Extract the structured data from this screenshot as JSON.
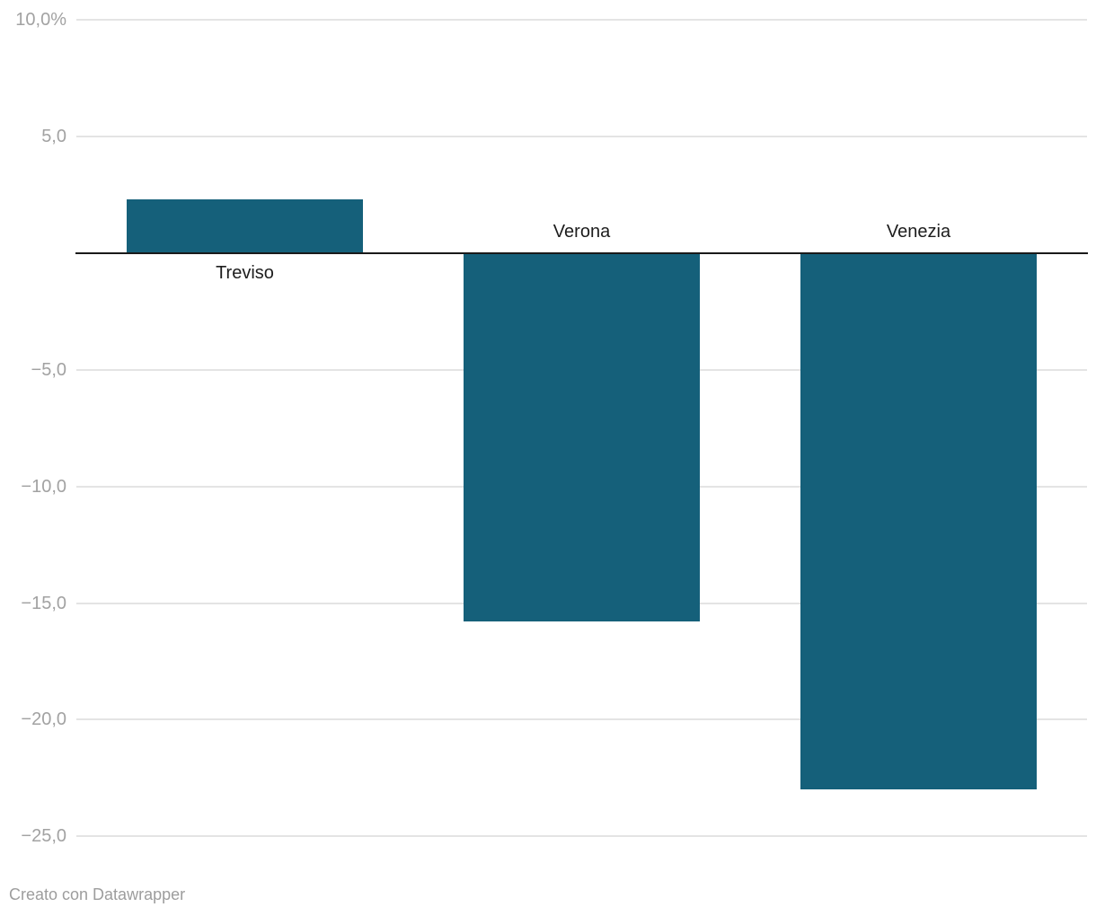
{
  "chart_data": {
    "type": "bar",
    "categories": [
      "Treviso",
      "Verona",
      "Venezia"
    ],
    "values": [
      2.3,
      -15.8,
      -23.0
    ],
    "title": "",
    "xlabel": "",
    "ylabel": "",
    "unit": "%",
    "ylim": [
      -25,
      10
    ],
    "grid": true,
    "legend": "none",
    "y_ticks": [
      {
        "value": 10,
        "label": "10,0%"
      },
      {
        "value": 5,
        "label": "5,0"
      },
      {
        "value": -5,
        "label": "−5,0"
      },
      {
        "value": -10,
        "label": "−10,0"
      },
      {
        "value": -15,
        "label": "−15,0"
      },
      {
        "value": -20,
        "label": "−20,0"
      },
      {
        "value": -25,
        "label": "−25,0"
      }
    ],
    "colors": {
      "bar": "#15607a",
      "gridline": "#e4e4e4",
      "zero_line": "#1a1a1a",
      "tick_label": "#a2a2a2",
      "category_label": "#1d1d1d"
    }
  },
  "footer": {
    "attribution": "Creato con Datawrapper",
    "text_color": "#9d9d9d"
  }
}
